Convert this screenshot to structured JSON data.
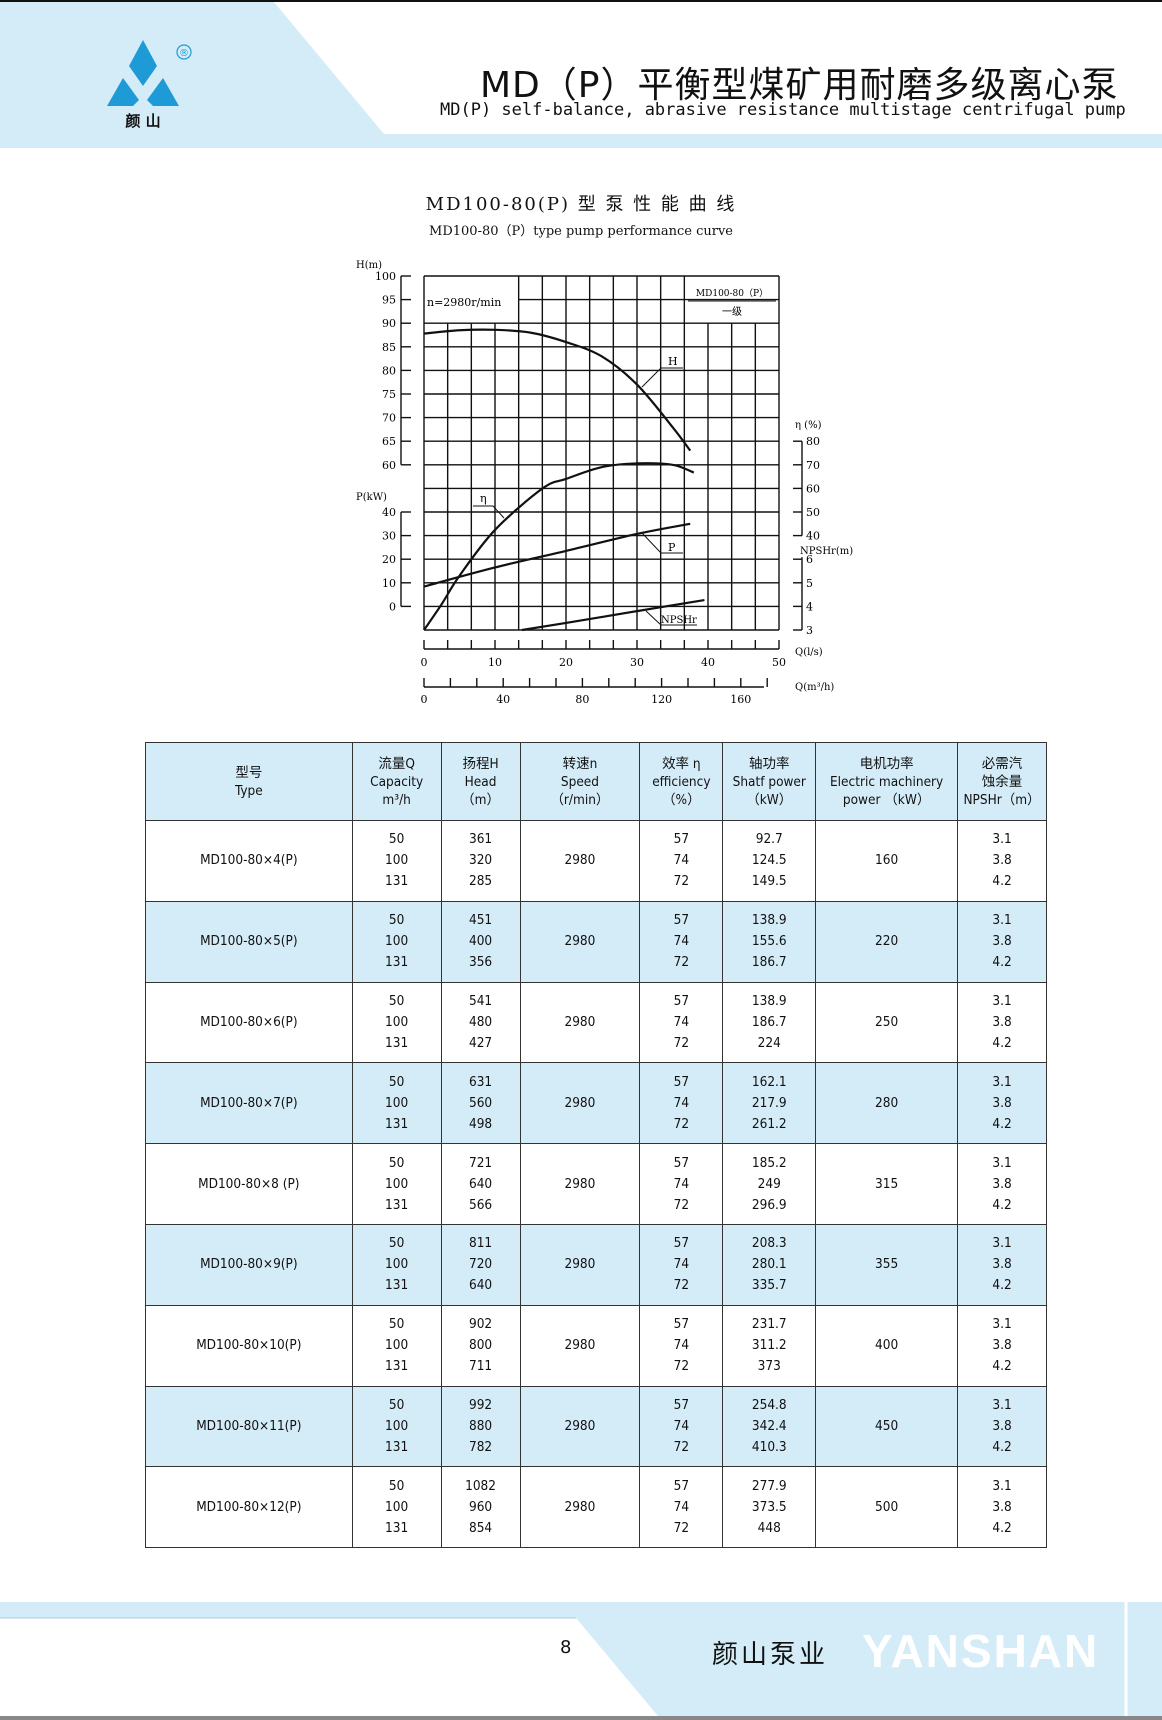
{
  "header": {
    "logo_text": "颜 山",
    "logo_mark": "®",
    "title_cn": "MD（P）平衡型煤矿用耐磨多级离心泵",
    "title_en": "MD(P) self-balance, abrasive resistance multistage centrifugal pump",
    "colors": {
      "band": "#d4ecf8",
      "logo": "#1e9ad6"
    }
  },
  "chart_data": {
    "type": "line",
    "title": "MD100-80(P) 型 泵 性 能 曲 线",
    "subtitle": "MD100-80（P）type pump performance curve",
    "speed_label": "n=2980r/min",
    "legend_model": "MD100-80（P）",
    "legend_stage": "一级",
    "x_axis": {
      "label": "Q(l/s)",
      "range": [
        0,
        50
      ],
      "ticks": [
        "0",
        "10",
        "20",
        "30",
        "40",
        "50"
      ]
    },
    "x2_axis": {
      "label": "Q(m³/h)",
      "range": [
        0,
        180
      ],
      "ticks": [
        "0",
        "40",
        "80",
        "120",
        "160"
      ]
    },
    "axes": {
      "H": {
        "label": "H(m)",
        "range": [
          60,
          100
        ],
        "ticks": [
          "100",
          "95",
          "90",
          "85",
          "80",
          "75",
          "70",
          "65",
          "60"
        ]
      },
      "P": {
        "label": "P(kW)",
        "range": [
          0,
          40
        ],
        "ticks": [
          "40",
          "30",
          "20",
          "10",
          "0"
        ]
      },
      "eta": {
        "label": "η (%)",
        "range": [
          40,
          80
        ],
        "ticks": [
          "80",
          "70",
          "60",
          "50",
          "40"
        ]
      },
      "NPSHr": {
        "label": "NPSHr(m)",
        "range": [
          3,
          6
        ],
        "ticks": [
          "6",
          "5",
          "4",
          "3"
        ]
      }
    },
    "grid": true,
    "series": [
      {
        "name": "H",
        "axis": "H",
        "x": [
          0,
          5,
          10,
          15,
          20,
          25,
          30,
          35,
          37.5
        ],
        "y": [
          87.8,
          88.5,
          88.6,
          88,
          86,
          83,
          77,
          68,
          63
        ]
      },
      {
        "name": "η",
        "axis": "eta",
        "x": [
          0,
          2.5,
          5,
          10,
          16.7,
          20,
          25,
          30,
          35,
          38
        ],
        "y": [
          0,
          11,
          23,
          42.4,
          60,
          64,
          69,
          70.6,
          70,
          66.7
        ]
      },
      {
        "name": "P",
        "axis": "P",
        "x": [
          0,
          10,
          20,
          30,
          37.5
        ],
        "y": [
          8.4,
          16.5,
          23.5,
          30.7,
          35
        ]
      },
      {
        "name": "NPSHr",
        "axis": "NPSHr",
        "x": [
          13.8,
          20,
          30,
          39.5
        ],
        "y": [
          3.0,
          3.3,
          3.8,
          4.27
        ]
      }
    ]
  },
  "table": {
    "headers": [
      [
        "型号",
        "Type"
      ],
      [
        "流量Q",
        "Capacity",
        "m³/h"
      ],
      [
        "扬程H",
        "Head",
        "（m）"
      ],
      [
        "转速n",
        "Speed",
        "（r/min）"
      ],
      [
        "效率 η",
        "efficiency",
        "（%）"
      ],
      [
        "轴功率",
        "Shatf power",
        "（kW）"
      ],
      [
        "电机功率",
        "Electric machinery",
        "power （kW）"
      ],
      [
        "必需汽",
        "蚀余量",
        "NPSHr（m）"
      ]
    ],
    "rows": [
      {
        "type": "MD100-80×4(P)",
        "q": [
          "50",
          "100",
          "131"
        ],
        "h": [
          "361",
          "320",
          "285"
        ],
        "n": "2980",
        "eff": [
          "57",
          "74",
          "72"
        ],
        "shaft": [
          "92.7",
          "124.5",
          "149.5"
        ],
        "motor": "160",
        "npshr": [
          "3.1",
          "3.8",
          "4.2"
        ]
      },
      {
        "type": "MD100-80×5(P)",
        "q": [
          "50",
          "100",
          "131"
        ],
        "h": [
          "451",
          "400",
          "356"
        ],
        "n": "2980",
        "eff": [
          "57",
          "74",
          "72"
        ],
        "shaft": [
          "138.9",
          "155.6",
          "186.7"
        ],
        "motor": "220",
        "npshr": [
          "3.1",
          "3.8",
          "4.2"
        ]
      },
      {
        "type": "MD100-80×6(P)",
        "q": [
          "50",
          "100",
          "131"
        ],
        "h": [
          "541",
          "480",
          "427"
        ],
        "n": "2980",
        "eff": [
          "57",
          "74",
          "72"
        ],
        "shaft": [
          "138.9",
          "186.7",
          "224"
        ],
        "motor": "250",
        "npshr": [
          "3.1",
          "3.8",
          "4.2"
        ]
      },
      {
        "type": "MD100-80×7(P)",
        "q": [
          "50",
          "100",
          "131"
        ],
        "h": [
          "631",
          "560",
          "498"
        ],
        "n": "2980",
        "eff": [
          "57",
          "74",
          "72"
        ],
        "shaft": [
          "162.1",
          "217.9",
          "261.2"
        ],
        "motor": "280",
        "npshr": [
          "3.1",
          "3.8",
          "4.2"
        ]
      },
      {
        "type": "MD100-80×8 (P)",
        "q": [
          "50",
          "100",
          "131"
        ],
        "h": [
          "721",
          "640",
          "566"
        ],
        "n": "2980",
        "eff": [
          "57",
          "74",
          "72"
        ],
        "shaft": [
          "185.2",
          "249",
          "296.9"
        ],
        "motor": "315",
        "npshr": [
          "3.1",
          "3.8",
          "4.2"
        ]
      },
      {
        "type": "MD100-80×9(P)",
        "q": [
          "50",
          "100",
          "131"
        ],
        "h": [
          "811",
          "720",
          "640"
        ],
        "n": "2980",
        "eff": [
          "57",
          "74",
          "72"
        ],
        "shaft": [
          "208.3",
          "280.1",
          "335.7"
        ],
        "motor": "355",
        "npshr": [
          "3.1",
          "3.8",
          "4.2"
        ]
      },
      {
        "type": "MD100-80×10(P)",
        "q": [
          "50",
          "100",
          "131"
        ],
        "h": [
          "902",
          "800",
          "711"
        ],
        "n": "2980",
        "eff": [
          "57",
          "74",
          "72"
        ],
        "shaft": [
          "231.7",
          "311.2",
          "373"
        ],
        "motor": "400",
        "npshr": [
          "3.1",
          "3.8",
          "4.2"
        ]
      },
      {
        "type": "MD100-80×11(P)",
        "q": [
          "50",
          "100",
          "131"
        ],
        "h": [
          "992",
          "880",
          "782"
        ],
        "n": "2980",
        "eff": [
          "57",
          "74",
          "72"
        ],
        "shaft": [
          "254.8",
          "342.4",
          "410.3"
        ],
        "motor": "450",
        "npshr": [
          "3.1",
          "3.8",
          "4.2"
        ]
      },
      {
        "type": "MD100-80×12(P)",
        "q": [
          "50",
          "100",
          "131"
        ],
        "h": [
          "1082",
          "960",
          "854"
        ],
        "n": "2980",
        "eff": [
          "57",
          "74",
          "72"
        ],
        "shaft": [
          "277.9",
          "373.5",
          "448"
        ],
        "motor": "500",
        "npshr": [
          "3.1",
          "3.8",
          "4.2"
        ]
      }
    ]
  },
  "footer": {
    "page_number": "8",
    "brand_cn": "颜山泵业",
    "brand_en": "YANSHAN"
  }
}
